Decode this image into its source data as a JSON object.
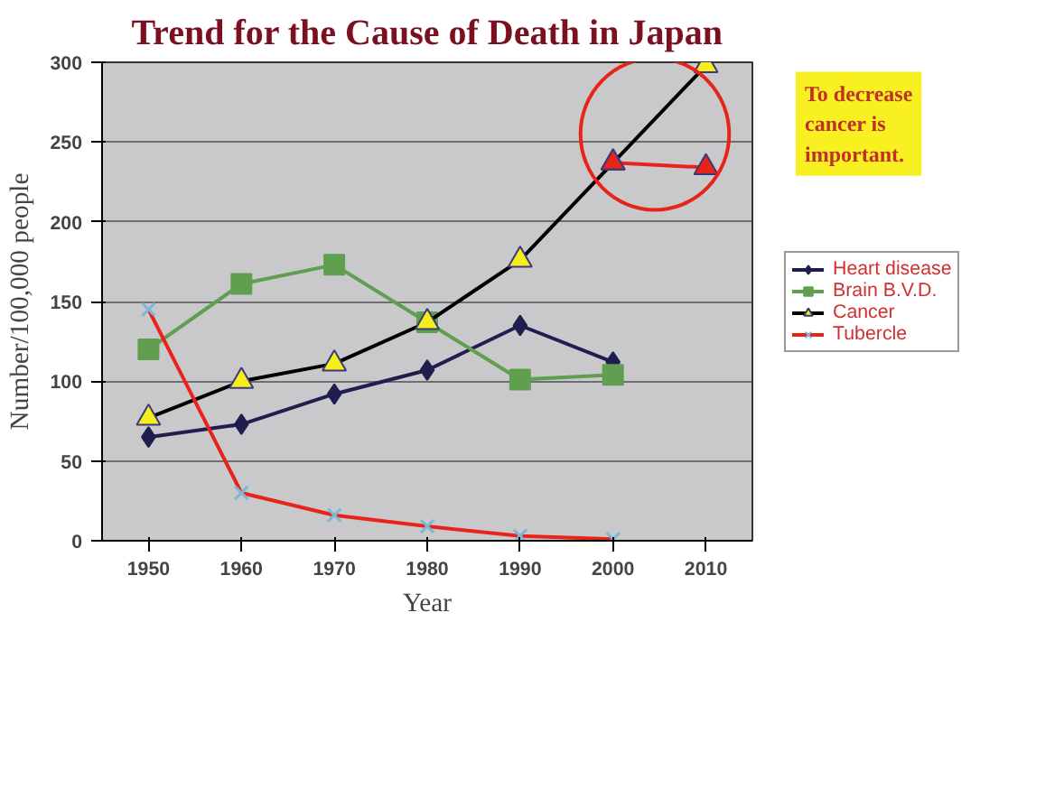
{
  "chart_data": {
    "type": "line",
    "title": "Trend for the Cause of Death in Japan",
    "ylabel": "Number/100,000 people",
    "xlabel": "Year",
    "categories": [
      "1950",
      "1960",
      "1970",
      "1980",
      "1990",
      "2000",
      "2010"
    ],
    "ylim": [
      0,
      300
    ],
    "yticks": [
      0,
      50,
      100,
      150,
      200,
      250,
      300
    ],
    "grid": "y",
    "legend": "right",
    "series": [
      {
        "name": "Heart disease",
        "color": "#1f1f4f",
        "marker": "diamond",
        "values": [
          65,
          73,
          92,
          107,
          135,
          112,
          null
        ]
      },
      {
        "name": "Brain B.V.D.",
        "color": "#5f9f4f",
        "marker": "square",
        "values": [
          120,
          161,
          173,
          137,
          101,
          104,
          null
        ]
      },
      {
        "name": "Cancer",
        "color": "#000000",
        "marker": "triangle",
        "values": [
          77,
          100,
          111,
          137,
          176,
          237,
          298
        ]
      },
      {
        "name": "Tubercle",
        "color": "#e8231a",
        "marker": "cross",
        "values": [
          145,
          30,
          16,
          9,
          3,
          1,
          null
        ]
      },
      {
        "color": "#e8231a",
        "marker": "triangle",
        "values": [
          null,
          null,
          null,
          null,
          null,
          237,
          234
        ]
      }
    ],
    "annotations": [
      "To decrease cancer is important."
    ]
  }
}
